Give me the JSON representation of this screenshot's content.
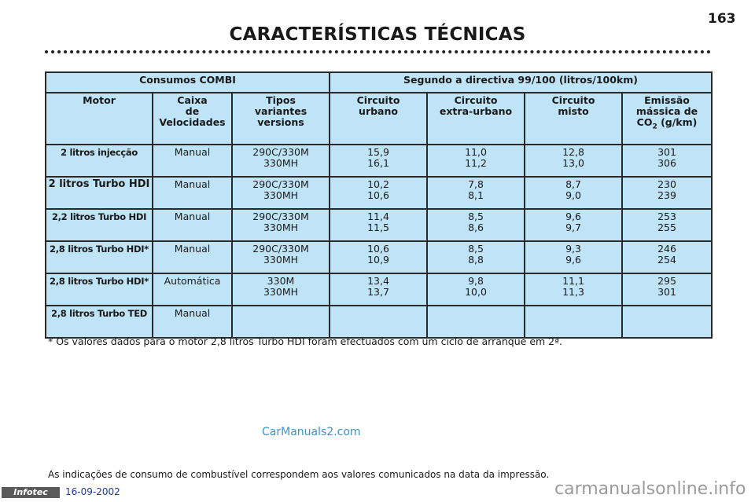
{
  "page": {
    "number": "163",
    "title": "CARACTERÍSTICAS TÉCNICAS"
  },
  "table": {
    "group_header_left": "Consumos COMBI",
    "group_header_right": "Segundo a directiva 99/100 (litros/100km)",
    "columns": {
      "motor": "Motor",
      "gearbox": "Caixa\nde\nVelocidades",
      "types": "Tipos\nvariantes\nversions",
      "urban": "Circuito\nurbano",
      "extra_urban": "Circuito\nextra-urbano",
      "mixed": "Circuito\nmisto",
      "co2_line1": "Emissão\nmássica de",
      "co2_prefix": "CO",
      "co2_sub": "2",
      "co2_suffix": " (g/km)"
    },
    "rows": [
      {
        "motor": "2 litros injecção",
        "gearbox": "Manual",
        "types": "290C/330M\n330MH",
        "urban": "15,9\n16,1",
        "extra_urban": "11,0\n11,2",
        "mixed": "12,8\n13,0",
        "co2": "301\n306"
      },
      {
        "motor": "2 litros Turbo HDI",
        "gearbox": "Manual",
        "types": "290C/330M\n330MH",
        "urban": "10,2\n10,6",
        "extra_urban": "7,8\n8,1",
        "mixed": "8,7\n9,0",
        "co2": "230\n239"
      },
      {
        "motor": "2,2 litros Turbo HDI",
        "gearbox": "Manual",
        "types": "290C/330M\n330MH",
        "urban": "11,4\n11,5",
        "extra_urban": "8,5\n8,6",
        "mixed": "9,6\n9,7",
        "co2": "253\n255"
      },
      {
        "motor": "2,8 litros Turbo HDI*",
        "gearbox": "Manual",
        "types": "290C/330M\n330MH",
        "urban": "10,6\n10,9",
        "extra_urban": "8,5\n8,8",
        "mixed": "9,3\n9,6",
        "co2": "246\n254"
      },
      {
        "motor": "2,8 litros Turbo HDI*",
        "gearbox": "Automática",
        "types": "330M\n330MH",
        "urban": "13,4\n13,7",
        "extra_urban": "9,8\n10,0",
        "mixed": "11,1\n11,3",
        "co2": "295\n301"
      },
      {
        "motor": "2,8 litros Turbo TED",
        "gearbox": "Manual",
        "types": "",
        "urban": "",
        "extra_urban": "",
        "mixed": "",
        "co2": ""
      }
    ]
  },
  "footnote": "* Os valores dados para o motor 2,8 litros Turbo HDI foram efectuados com um ciclo de arranque em 2ª.",
  "watermark": "CarManuals2.com",
  "bottom_note": "As indicações de consumo de combustível correspondem aos valores  comunicados na data da impressão.",
  "footer": {
    "badge": "Infotec",
    "date": "16-09-2002",
    "site": "carmanualsonline.info"
  }
}
